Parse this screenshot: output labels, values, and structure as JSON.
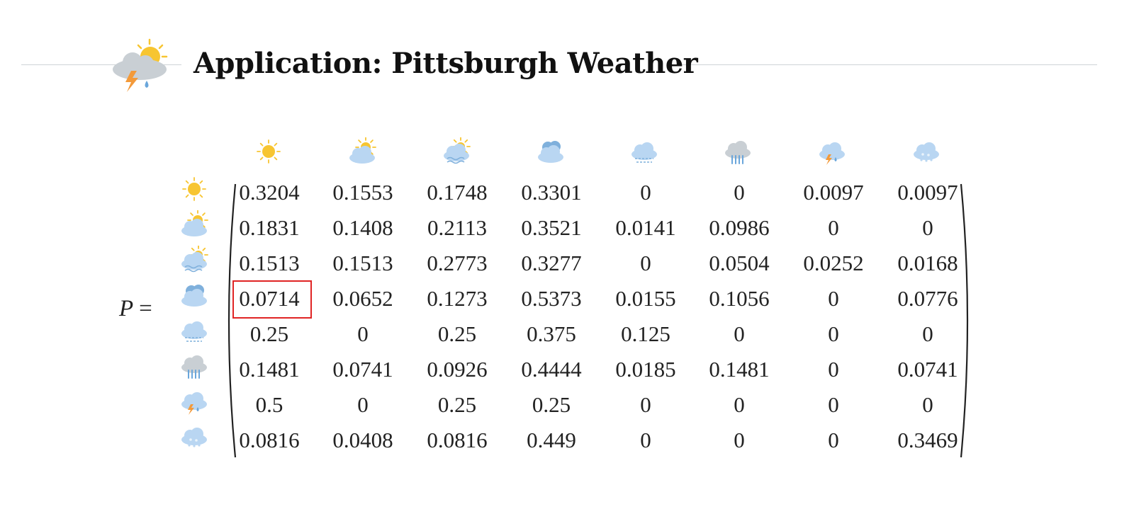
{
  "slide": {
    "title": "Application: Pittsburgh Weather",
    "title_icon": "storm-cloud-sun-icon"
  },
  "matrix": {
    "label": "P",
    "equals": "=",
    "state_icons": [
      "sunny-icon",
      "partly-cloudy-icon",
      "hazy-sun-icon",
      "cloudy-icon",
      "foggy-cloud-icon",
      "rain-icon",
      "thunderstorm-icon",
      "snow-icon"
    ],
    "rows": [
      [
        "0.3204",
        "0.1553",
        "0.1748",
        "0.3301",
        "0",
        "0",
        "0.0097",
        "0.0097"
      ],
      [
        "0.1831",
        "0.1408",
        "0.2113",
        "0.3521",
        "0.0141",
        "0.0986",
        "0",
        "0"
      ],
      [
        "0.1513",
        "0.1513",
        "0.2773",
        "0.3277",
        "0",
        "0.0504",
        "0.0252",
        "0.0168"
      ],
      [
        "0.0714",
        "0.0652",
        "0.1273",
        "0.5373",
        "0.0155",
        "0.1056",
        "0",
        "0.0776"
      ],
      [
        "0.25",
        "0",
        "0.25",
        "0.375",
        "0.125",
        "0",
        "0",
        "0"
      ],
      [
        "0.1481",
        "0.0741",
        "0.0926",
        "0.4444",
        "0.0185",
        "0.1481",
        "0",
        "0.0741"
      ],
      [
        "0.5",
        "0",
        "0.25",
        "0.25",
        "0",
        "0",
        "0",
        "0"
      ],
      [
        "0.0816",
        "0.0408",
        "0.0816",
        "0.449",
        "0",
        "0",
        "0",
        "0.3469"
      ]
    ],
    "highlighted_cell": {
      "row": 3,
      "col": 0
    },
    "highlight_color": "#e02424"
  },
  "colors": {
    "sun": "#f7c531",
    "cloud_light": "#b9d6f2",
    "cloud_dark": "#7fb0dc",
    "grey_cloud": "#c9cfd4",
    "bolt": "#f39a3a",
    "rain": "#6aa6db"
  }
}
